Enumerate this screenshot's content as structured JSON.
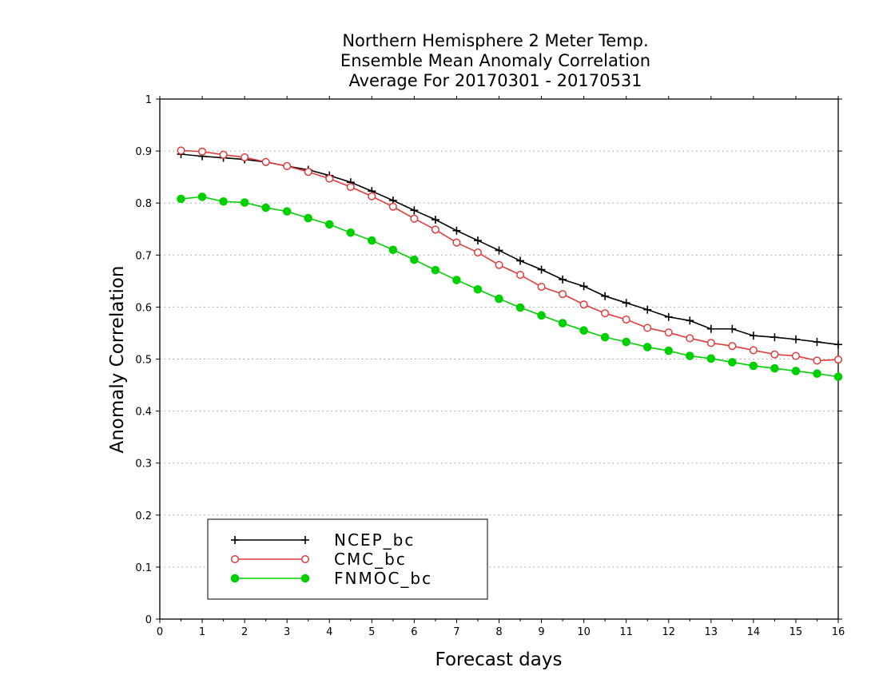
{
  "chart_data": {
    "type": "line",
    "title_lines": [
      "Northern Hemisphere 2 Meter Temp.",
      "Ensemble Mean Anomaly Correlation",
      "Average For 20170301 - 20170531"
    ],
    "xlabel": "Forecast days",
    "ylabel": "Anomaly Correlation",
    "xlim": [
      0,
      16
    ],
    "ylim": [
      0,
      1
    ],
    "xticks": [
      "0",
      "1",
      "2",
      "3",
      "4",
      "5",
      "6",
      "7",
      "8",
      "9",
      "10",
      "11",
      "12",
      "13",
      "14",
      "15",
      "16"
    ],
    "yticks": [
      "0",
      "0.1",
      "0.2",
      "0.3",
      "0.4",
      "0.5",
      "0.6",
      "0.7",
      "0.8",
      "0.9",
      "1"
    ],
    "grid": "dotted",
    "legend_position": "bottom-left",
    "x": [
      0.5,
      1,
      1.5,
      2,
      2.5,
      3,
      3.5,
      4,
      4.5,
      5,
      5.5,
      6,
      6.5,
      7,
      7.5,
      8,
      8.5,
      9,
      9.5,
      10,
      10.5,
      11,
      11.5,
      12,
      12.5,
      13,
      13.5,
      14,
      14.5,
      15,
      15.5,
      16
    ],
    "series": [
      {
        "name": "NCEP_bc",
        "color": "#000000",
        "marker": "plus",
        "values": [
          0.894,
          0.89,
          0.887,
          0.884,
          0.879,
          0.871,
          0.864,
          0.853,
          0.84,
          0.823,
          0.805,
          0.786,
          0.768,
          0.747,
          0.728,
          0.709,
          0.689,
          0.672,
          0.653,
          0.64,
          0.621,
          0.608,
          0.595,
          0.581,
          0.574,
          0.558,
          0.558,
          0.545,
          0.542,
          0.538,
          0.533,
          0.528
        ]
      },
      {
        "name": "CMC_bc",
        "color": "#e03c3c",
        "marker": "open-circle",
        "values": [
          0.901,
          0.899,
          0.893,
          0.888,
          0.879,
          0.871,
          0.86,
          0.847,
          0.831,
          0.813,
          0.793,
          0.77,
          0.749,
          0.724,
          0.705,
          0.681,
          0.662,
          0.639,
          0.625,
          0.605,
          0.588,
          0.576,
          0.56,
          0.551,
          0.54,
          0.531,
          0.525,
          0.517,
          0.509,
          0.506,
          0.497,
          0.499
        ]
      },
      {
        "name": "FNMOC_bc",
        "color": "#00d000",
        "marker": "filled-circle",
        "values": [
          0.808,
          0.812,
          0.803,
          0.801,
          0.791,
          0.784,
          0.771,
          0.759,
          0.743,
          0.728,
          0.71,
          0.691,
          0.671,
          0.652,
          0.634,
          0.616,
          0.599,
          0.584,
          0.569,
          0.555,
          0.542,
          0.533,
          0.523,
          0.516,
          0.506,
          0.501,
          0.494,
          0.487,
          0.482,
          0.477,
          0.472,
          0.466
        ]
      }
    ]
  }
}
